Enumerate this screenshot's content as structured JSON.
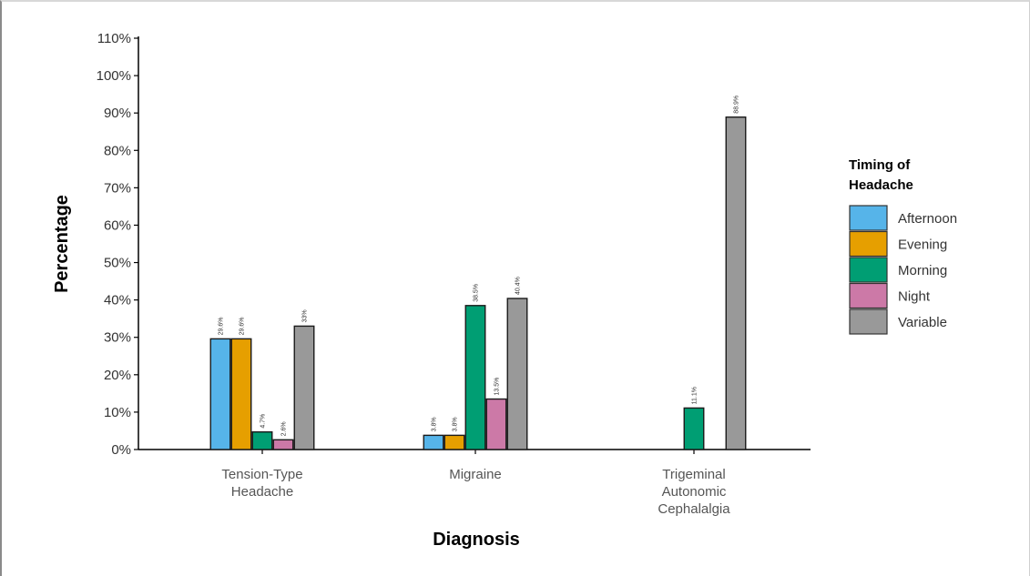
{
  "chart_data": {
    "type": "bar",
    "categories": [
      [
        "Tension-Type",
        "Headache"
      ],
      [
        "Migraine"
      ],
      [
        "Trigeminal",
        "Autonomic",
        "Cephalalgia"
      ]
    ],
    "series": [
      {
        "name": "Afternoon",
        "color": "#56b4e9",
        "values": [
          29.6,
          3.8,
          null
        ],
        "labels": [
          "29.6%",
          "3.8%",
          ""
        ]
      },
      {
        "name": "Evening",
        "color": "#e69f00",
        "values": [
          29.6,
          3.8,
          null
        ],
        "labels": [
          "29.6%",
          "3.8%",
          ""
        ]
      },
      {
        "name": "Morning",
        "color": "#009e73",
        "values": [
          4.7,
          38.5,
          11.1
        ],
        "labels": [
          "4.7%",
          "38.5%",
          "11.1%"
        ]
      },
      {
        "name": "Night",
        "color": "#cc79a7",
        "values": [
          2.6,
          13.5,
          null
        ],
        "labels": [
          "2.6%",
          "13.5%",
          ""
        ]
      },
      {
        "name": "Variable",
        "color": "#999999",
        "values": [
          33,
          40.4,
          88.9
        ],
        "labels": [
          "33%",
          "40.4%",
          "88.9%"
        ]
      }
    ],
    "yticks": [
      "0%",
      "10%",
      "20%",
      "30%",
      "40%",
      "50%",
      "60%",
      "70%",
      "80%",
      "90%",
      "100%",
      "110%"
    ],
    "ylim": [
      0,
      110
    ],
    "xlabel": "Diagnosis",
    "ylabel": "Percentage",
    "legend_title": [
      "Timing of",
      "Headache"
    ],
    "legend_position": "right",
    "grid": false
  }
}
